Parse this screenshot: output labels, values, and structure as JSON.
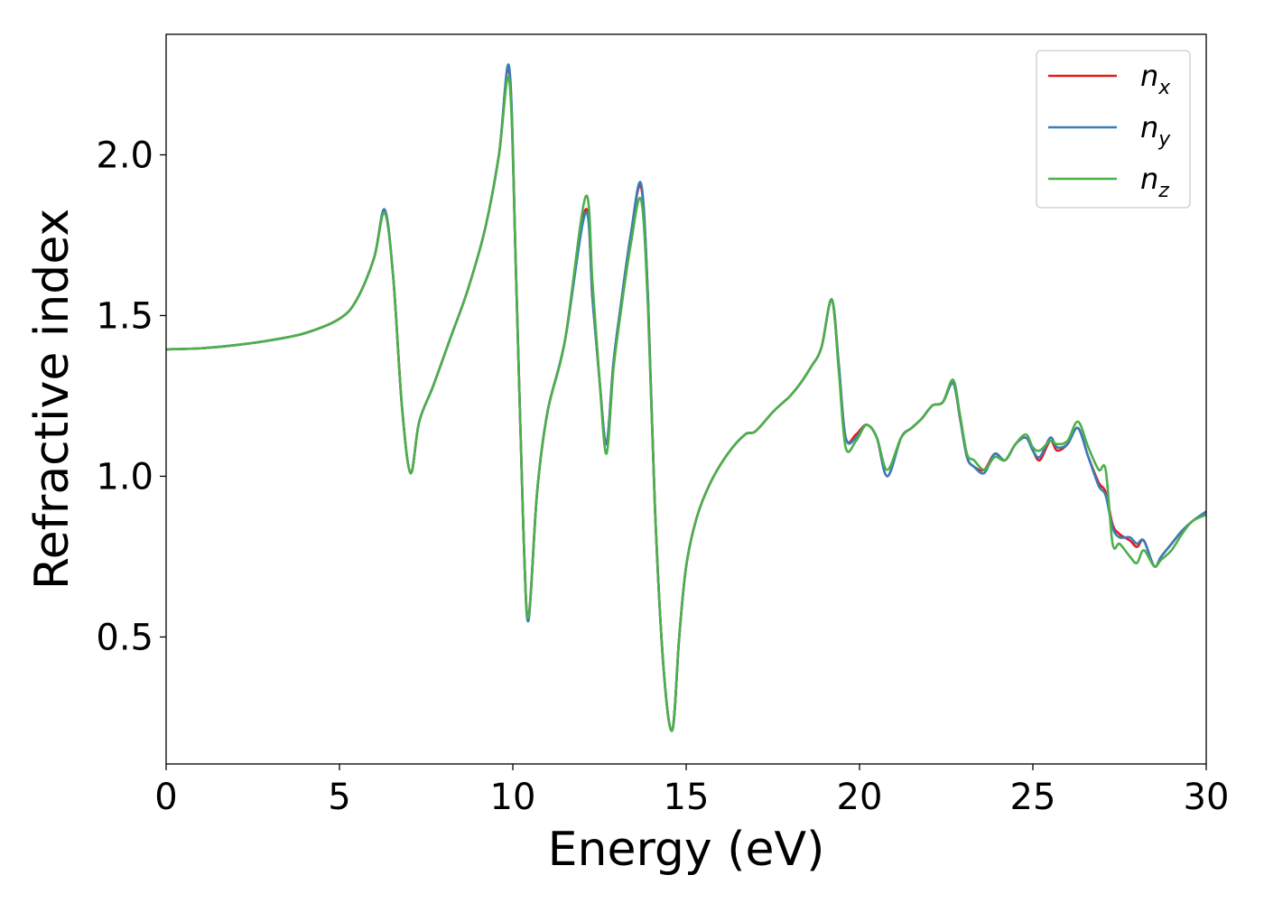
{
  "chart_data": {
    "type": "line",
    "title": "",
    "xlabel": "Energy (eV)",
    "ylabel": "Refractive index",
    "xlim": [
      0,
      30
    ],
    "ylim": [
      0.105,
      2.375
    ],
    "xticks": [
      0,
      5,
      10,
      15,
      20,
      25,
      30
    ],
    "xtick_labels": [
      "0",
      "5",
      "10",
      "15",
      "20",
      "25",
      "30"
    ],
    "yticks": [
      0.5,
      1.0,
      1.5,
      2.0
    ],
    "ytick_labels": [
      "0.5",
      "1.0",
      "1.5",
      "2.0"
    ],
    "grid": false,
    "legend_position": "top-right",
    "series": [
      {
        "name": "n_x",
        "label_base": "n",
        "label_sub": "x",
        "color": "#e41a1c",
        "x": [
          0,
          1,
          2,
          3,
          4,
          5,
          5.5,
          6.0,
          6.3,
          6.55,
          6.8,
          7.05,
          7.3,
          7.7,
          8.2,
          8.7,
          9.2,
          9.6,
          9.9,
          10.1,
          10.3,
          10.45,
          10.7,
          11.0,
          11.5,
          12.1,
          12.3,
          12.5,
          12.7,
          12.9,
          13.1,
          13.4,
          13.7,
          13.9,
          14.1,
          14.35,
          14.6,
          14.8,
          15.0,
          15.3,
          15.7,
          16.2,
          16.7,
          17.0,
          17.5,
          17.8,
          18.0,
          18.3,
          18.6,
          18.9,
          19.2,
          19.4,
          19.6,
          19.9,
          20.2,
          20.5,
          20.8,
          21.2,
          21.5,
          21.8,
          22.1,
          22.4,
          22.7,
          22.9,
          23.1,
          23.3,
          23.6,
          23.9,
          24.2,
          24.5,
          24.8,
          25.0,
          25.2,
          25.5,
          25.7,
          26.0,
          26.3,
          26.6,
          26.9,
          27.1,
          27.3,
          27.5,
          27.8,
          28.0,
          28.2,
          28.5,
          28.7,
          29.0,
          29.3,
          29.6,
          30.0
        ],
        "y": [
          1.395,
          1.398,
          1.408,
          1.423,
          1.445,
          1.49,
          1.55,
          1.68,
          1.83,
          1.62,
          1.22,
          1.01,
          1.17,
          1.28,
          1.43,
          1.58,
          1.77,
          2.0,
          2.26,
          1.6,
          0.85,
          0.56,
          0.95,
          1.2,
          1.42,
          1.83,
          1.55,
          1.3,
          1.1,
          1.35,
          1.52,
          1.75,
          1.9,
          1.55,
          0.9,
          0.4,
          0.21,
          0.5,
          0.72,
          0.87,
          0.98,
          1.07,
          1.13,
          1.14,
          1.2,
          1.23,
          1.25,
          1.29,
          1.34,
          1.4,
          1.55,
          1.35,
          1.12,
          1.13,
          1.16,
          1.12,
          1.0,
          1.12,
          1.15,
          1.18,
          1.22,
          1.23,
          1.29,
          1.18,
          1.06,
          1.03,
          1.02,
          1.07,
          1.05,
          1.1,
          1.12,
          1.08,
          1.05,
          1.11,
          1.08,
          1.1,
          1.15,
          1.06,
          0.98,
          0.95,
          0.85,
          0.82,
          0.8,
          0.78,
          0.8,
          0.72,
          0.75,
          0.79,
          0.83,
          0.86,
          0.89
        ]
      },
      {
        "name": "n_y",
        "label_base": "n",
        "label_sub": "y",
        "color": "#377eb8",
        "x": [
          0,
          1,
          2,
          3,
          4,
          5,
          5.5,
          6.0,
          6.3,
          6.55,
          6.8,
          7.05,
          7.3,
          7.7,
          8.2,
          8.7,
          9.2,
          9.6,
          9.9,
          10.1,
          10.3,
          10.45,
          10.7,
          11.0,
          11.5,
          12.1,
          12.3,
          12.5,
          12.7,
          12.9,
          13.1,
          13.4,
          13.7,
          13.9,
          14.1,
          14.35,
          14.6,
          14.8,
          15.0,
          15.3,
          15.7,
          16.2,
          16.7,
          17.0,
          17.5,
          17.8,
          18.0,
          18.3,
          18.6,
          18.9,
          19.2,
          19.4,
          19.6,
          19.9,
          20.2,
          20.5,
          20.8,
          21.2,
          21.5,
          21.8,
          22.1,
          22.4,
          22.7,
          22.9,
          23.1,
          23.3,
          23.6,
          23.9,
          24.2,
          24.5,
          24.8,
          25.0,
          25.2,
          25.5,
          25.7,
          26.0,
          26.3,
          26.6,
          26.9,
          27.1,
          27.3,
          27.5,
          27.8,
          28.0,
          28.2,
          28.5,
          28.7,
          29.0,
          29.3,
          29.6,
          30.0
        ],
        "y": [
          1.395,
          1.398,
          1.408,
          1.423,
          1.445,
          1.49,
          1.55,
          1.68,
          1.83,
          1.62,
          1.22,
          1.01,
          1.17,
          1.28,
          1.43,
          1.58,
          1.77,
          2.0,
          2.27,
          1.6,
          0.85,
          0.55,
          0.95,
          1.2,
          1.42,
          1.82,
          1.55,
          1.3,
          1.1,
          1.35,
          1.52,
          1.75,
          1.91,
          1.55,
          0.9,
          0.4,
          0.21,
          0.5,
          0.72,
          0.87,
          0.98,
          1.07,
          1.13,
          1.14,
          1.2,
          1.23,
          1.25,
          1.29,
          1.34,
          1.4,
          1.55,
          1.35,
          1.12,
          1.12,
          1.16,
          1.12,
          1.0,
          1.12,
          1.15,
          1.18,
          1.22,
          1.23,
          1.29,
          1.18,
          1.06,
          1.03,
          1.01,
          1.07,
          1.05,
          1.1,
          1.12,
          1.08,
          1.06,
          1.12,
          1.09,
          1.1,
          1.15,
          1.06,
          0.97,
          0.94,
          0.84,
          0.81,
          0.81,
          0.79,
          0.8,
          0.72,
          0.75,
          0.79,
          0.83,
          0.86,
          0.89
        ]
      },
      {
        "name": "n_z",
        "label_base": "n",
        "label_sub": "z",
        "color": "#4daf4a",
        "x": [
          0,
          1,
          2,
          3,
          4,
          5,
          5.5,
          6.0,
          6.3,
          6.55,
          6.8,
          7.05,
          7.3,
          7.7,
          8.2,
          8.7,
          9.2,
          9.6,
          9.9,
          10.1,
          10.3,
          10.45,
          10.7,
          11.0,
          11.5,
          12.1,
          12.3,
          12.5,
          12.7,
          12.9,
          13.1,
          13.4,
          13.7,
          13.9,
          14.1,
          14.35,
          14.6,
          14.8,
          15.0,
          15.3,
          15.7,
          16.2,
          16.7,
          17.0,
          17.5,
          17.8,
          18.0,
          18.3,
          18.6,
          18.9,
          19.2,
          19.4,
          19.6,
          19.9,
          20.2,
          20.5,
          20.8,
          21.2,
          21.5,
          21.8,
          22.1,
          22.4,
          22.7,
          22.9,
          23.1,
          23.3,
          23.6,
          23.9,
          24.2,
          24.5,
          24.8,
          25.0,
          25.2,
          25.5,
          25.7,
          26.0,
          26.3,
          26.6,
          26.9,
          27.1,
          27.3,
          27.5,
          27.8,
          28.0,
          28.2,
          28.5,
          28.7,
          29.0,
          29.3,
          29.6,
          30.0
        ],
        "y": [
          1.395,
          1.398,
          1.408,
          1.423,
          1.445,
          1.49,
          1.55,
          1.68,
          1.82,
          1.62,
          1.22,
          1.01,
          1.17,
          1.28,
          1.43,
          1.58,
          1.77,
          2.0,
          2.23,
          1.6,
          0.85,
          0.56,
          0.95,
          1.2,
          1.42,
          1.87,
          1.6,
          1.3,
          1.07,
          1.33,
          1.5,
          1.72,
          1.86,
          1.52,
          0.9,
          0.4,
          0.21,
          0.5,
          0.72,
          0.87,
          0.98,
          1.07,
          1.13,
          1.14,
          1.2,
          1.23,
          1.25,
          1.29,
          1.34,
          1.4,
          1.55,
          1.33,
          1.09,
          1.11,
          1.16,
          1.12,
          1.02,
          1.12,
          1.15,
          1.18,
          1.22,
          1.23,
          1.3,
          1.19,
          1.07,
          1.05,
          1.02,
          1.06,
          1.05,
          1.1,
          1.13,
          1.09,
          1.08,
          1.11,
          1.1,
          1.11,
          1.17,
          1.09,
          1.02,
          1.02,
          0.79,
          0.79,
          0.75,
          0.73,
          0.77,
          0.72,
          0.74,
          0.77,
          0.82,
          0.86,
          0.88
        ]
      }
    ]
  }
}
